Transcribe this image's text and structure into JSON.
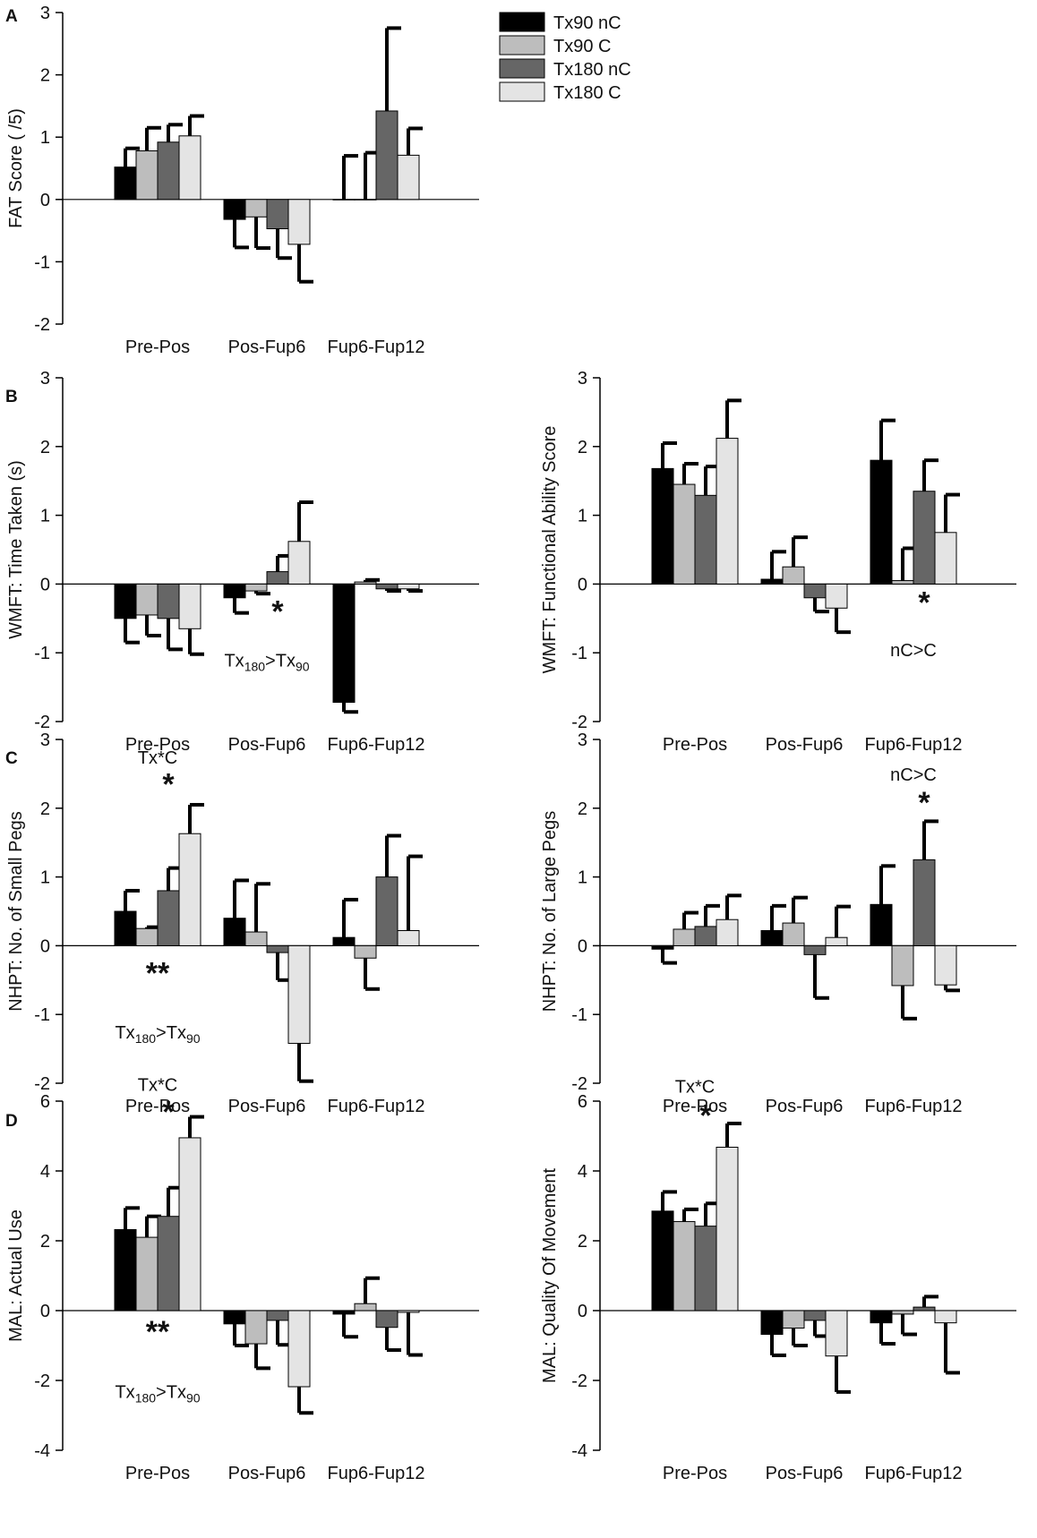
{
  "colors": {
    "Tx90 nC": "#000000",
    "Tx90 C": "#bdbdbd",
    "Tx180 nC": "#666666",
    "Tx180 C": "#e4e4e4"
  },
  "legend": [
    "Tx90 nC",
    "Tx90 C",
    "Tx180 nC",
    "Tx180 C"
  ],
  "panel_letters": {
    "A": "A",
    "B": "B",
    "C": "C",
    "D": "D"
  },
  "chart_data": [
    {
      "id": "A-fat",
      "type": "bar",
      "ylabel": "FAT Score ( /5)",
      "ylim": [
        -2,
        3
      ],
      "yticks": [
        -2,
        -1,
        0,
        1,
        2,
        3
      ],
      "categories": [
        "Pre-Pos",
        "Pos-Fup6",
        "Fup6-Fup12"
      ],
      "series": [
        {
          "name": "Tx90 nC",
          "values": [
            0.52,
            -0.32,
            0.0
          ],
          "errors": [
            0.3,
            0.45,
            0.7
          ]
        },
        {
          "name": "Tx90 C",
          "values": [
            0.78,
            -0.28,
            0.0
          ],
          "errors": [
            0.37,
            0.5,
            0.75
          ]
        },
        {
          "name": "Tx180 nC",
          "values": [
            0.92,
            -0.47,
            1.42
          ],
          "errors": [
            0.28,
            0.47,
            1.33
          ]
        },
        {
          "name": "Tx180 C",
          "values": [
            1.02,
            -0.72,
            0.71
          ],
          "errors": [
            0.32,
            0.6,
            0.43
          ]
        }
      ],
      "annotations": []
    },
    {
      "id": "B-time",
      "type": "bar",
      "ylabel": "WMFT: Time Taken (s)",
      "ylim": [
        -2,
        3
      ],
      "yticks": [
        -2,
        -1,
        0,
        1,
        2,
        3
      ],
      "categories": [
        "Pre-Pos",
        "Pos-Fup6",
        "Fup6-Fup12"
      ],
      "series": [
        {
          "name": "Tx90 nC",
          "values": [
            -0.5,
            -0.2,
            -1.72
          ],
          "errors": [
            0.35,
            0.22,
            0.14
          ]
        },
        {
          "name": "Tx90 C",
          "values": [
            -0.45,
            -0.1,
            0.03
          ],
          "errors": [
            0.3,
            0.04,
            0.03
          ]
        },
        {
          "name": "Tx180 nC",
          "values": [
            -0.5,
            0.18,
            -0.07
          ],
          "errors": [
            0.45,
            0.23,
            0.03
          ]
        },
        {
          "name": "Tx180 C",
          "values": [
            -0.65,
            0.62,
            -0.07
          ],
          "errors": [
            0.37,
            0.57,
            0.03
          ]
        }
      ],
      "annotations": [
        {
          "type": "star",
          "text": "*",
          "category": 1,
          "value": -0.55
        },
        {
          "type": "sub",
          "main1": "Tx",
          "sub1": "180",
          "mid": ">Tx",
          "sub2": "90",
          "category": 1,
          "value": -1.2
        }
      ]
    },
    {
      "id": "B-functional",
      "type": "bar",
      "ylabel": "WMFT: Functional Ability Score",
      "ylim": [
        -2,
        3
      ],
      "yticks": [
        -2,
        -1,
        0,
        1,
        2,
        3
      ],
      "categories": [
        "Pre-Pos",
        "Pos-Fup6",
        "Fup6-Fup12"
      ],
      "series": [
        {
          "name": "Tx90 nC",
          "values": [
            1.68,
            0.07,
            1.8
          ],
          "errors": [
            0.37,
            0.4,
            0.58
          ]
        },
        {
          "name": "Tx90 C",
          "values": [
            1.45,
            0.25,
            0.05
          ],
          "errors": [
            0.3,
            0.43,
            0.47
          ]
        },
        {
          "name": "Tx180 nC",
          "values": [
            1.29,
            -0.2,
            1.35
          ],
          "errors": [
            0.42,
            0.2,
            0.45
          ]
        },
        {
          "name": "Tx180 C",
          "values": [
            2.12,
            -0.35,
            0.75
          ],
          "errors": [
            0.55,
            0.35,
            0.55
          ]
        }
      ],
      "annotations": [
        {
          "type": "star",
          "text": "*",
          "category": 2,
          "value": -0.42
        },
        {
          "type": "text",
          "text": "nC>C",
          "category": 2,
          "value": -1.05
        }
      ]
    },
    {
      "id": "C-small",
      "type": "bar",
      "ylabel": "NHPT: No. of Small Pegs",
      "ylim": [
        -2,
        3
      ],
      "yticks": [
        -2,
        -1,
        0,
        1,
        2,
        3
      ],
      "categories": [
        "Pre-Pos",
        "Pos-Fup6",
        "Fup6-Fup12"
      ],
      "series": [
        {
          "name": "Tx90 nC",
          "values": [
            0.5,
            0.4,
            0.12
          ],
          "errors": [
            0.3,
            0.55,
            0.55
          ]
        },
        {
          "name": "Tx90 C",
          "values": [
            0.25,
            0.2,
            -0.18
          ],
          "errors": [
            0.02,
            0.7,
            0.45
          ]
        },
        {
          "name": "Tx180 nC",
          "values": [
            0.8,
            -0.1,
            1.0
          ],
          "errors": [
            0.33,
            0.4,
            0.6
          ]
        },
        {
          "name": "Tx180 C",
          "values": [
            1.63,
            -1.42,
            0.22
          ],
          "errors": [
            0.42,
            0.55,
            1.08
          ]
        }
      ],
      "annotations": [
        {
          "type": "text",
          "text": "Tx*C",
          "category": 0,
          "value": 2.65
        },
        {
          "type": "star",
          "text": "*",
          "category": 0,
          "value": 2.2
        },
        {
          "type": "star",
          "text": "**",
          "category": 0,
          "value": -0.55
        },
        {
          "type": "sub",
          "main1": "Tx",
          "sub1": "180",
          "mid": ">Tx",
          "sub2": "90",
          "category": 0,
          "value": -1.35
        }
      ]
    },
    {
      "id": "C-large",
      "type": "bar",
      "ylabel": "NHPT: No. of Large Pegs",
      "ylim": [
        -2,
        3
      ],
      "yticks": [
        -2,
        -1,
        0,
        1,
        2,
        3
      ],
      "categories": [
        "Pre-Pos",
        "Pos-Fup6",
        "Fup6-Fup12"
      ],
      "series": [
        {
          "name": "Tx90 nC",
          "values": [
            -0.05,
            0.22,
            0.6
          ],
          "errors": [
            0.2,
            0.36,
            0.56
          ]
        },
        {
          "name": "Tx90 C",
          "values": [
            0.24,
            0.33,
            -0.58
          ],
          "errors": [
            0.24,
            0.37,
            0.48
          ]
        },
        {
          "name": "Tx180 nC",
          "values": [
            0.28,
            -0.13,
            1.25
          ],
          "errors": [
            0.3,
            0.63,
            0.56
          ]
        },
        {
          "name": "Tx180 C",
          "values": [
            0.38,
            0.12,
            -0.57
          ],
          "errors": [
            0.35,
            0.45,
            0.08
          ]
        }
      ],
      "annotations": [
        {
          "type": "text",
          "text": "nC>C",
          "category": 2,
          "value": 2.4
        },
        {
          "type": "star",
          "text": "*",
          "category": 2,
          "value": 1.93
        }
      ]
    },
    {
      "id": "D-actual",
      "type": "bar",
      "ylabel": "MAL: Actual Use",
      "ylim": [
        -4,
        6
      ],
      "yticks": [
        -4,
        -2,
        0,
        2,
        4,
        6
      ],
      "categories": [
        "Pre-Pos",
        "Pos-Fup6",
        "Fup6-Fup12"
      ],
      "series": [
        {
          "name": "Tx90 nC",
          "values": [
            2.32,
            -0.38,
            -0.1
          ],
          "errors": [
            0.62,
            0.62,
            0.65
          ]
        },
        {
          "name": "Tx90 C",
          "values": [
            2.1,
            -0.95,
            0.2
          ],
          "errors": [
            0.6,
            0.7,
            0.73
          ]
        },
        {
          "name": "Tx180 nC",
          "values": [
            2.7,
            -0.28,
            -0.48
          ],
          "errors": [
            0.82,
            0.7,
            0.65
          ]
        },
        {
          "name": "Tx180 C",
          "values": [
            4.95,
            -2.18,
            -0.05
          ],
          "errors": [
            0.6,
            0.75,
            1.22
          ]
        }
      ],
      "annotations": [
        {
          "type": "text",
          "text": "Tx*C",
          "category": 0,
          "value": 6.3
        },
        {
          "type": "star",
          "text": "*",
          "category": 0,
          "value": 5.4
        },
        {
          "type": "star",
          "text": "**",
          "category": 0,
          "value": -0.9
        },
        {
          "type": "sub",
          "main1": "Tx",
          "sub1": "180",
          "mid": ">Tx",
          "sub2": "90",
          "category": 0,
          "value": -2.5
        }
      ]
    },
    {
      "id": "D-quality",
      "type": "bar",
      "ylabel": "MAL: Quality Of Movement",
      "ylim": [
        -4,
        6
      ],
      "yticks": [
        -4,
        -2,
        0,
        2,
        4,
        6
      ],
      "categories": [
        "Pre-Pos",
        "Pos-Fup6",
        "Fup6-Fup12"
      ],
      "series": [
        {
          "name": "Tx90 nC",
          "values": [
            2.85,
            -0.68,
            -0.35
          ],
          "errors": [
            0.55,
            0.6,
            0.6
          ]
        },
        {
          "name": "Tx90 C",
          "values": [
            2.55,
            -0.5,
            -0.1
          ],
          "errors": [
            0.35,
            0.5,
            0.58
          ]
        },
        {
          "name": "Tx180 nC",
          "values": [
            2.42,
            -0.28,
            0.1
          ],
          "errors": [
            0.65,
            0.45,
            0.3
          ]
        },
        {
          "name": "Tx180 C",
          "values": [
            4.68,
            -1.3,
            -0.35
          ],
          "errors": [
            0.68,
            1.03,
            1.43
          ]
        }
      ],
      "annotations": [
        {
          "type": "text",
          "text": "Tx*C",
          "category": 0,
          "value": 6.25
        },
        {
          "type": "star",
          "text": "*",
          "category": 0,
          "value": 5.3
        }
      ]
    }
  ]
}
